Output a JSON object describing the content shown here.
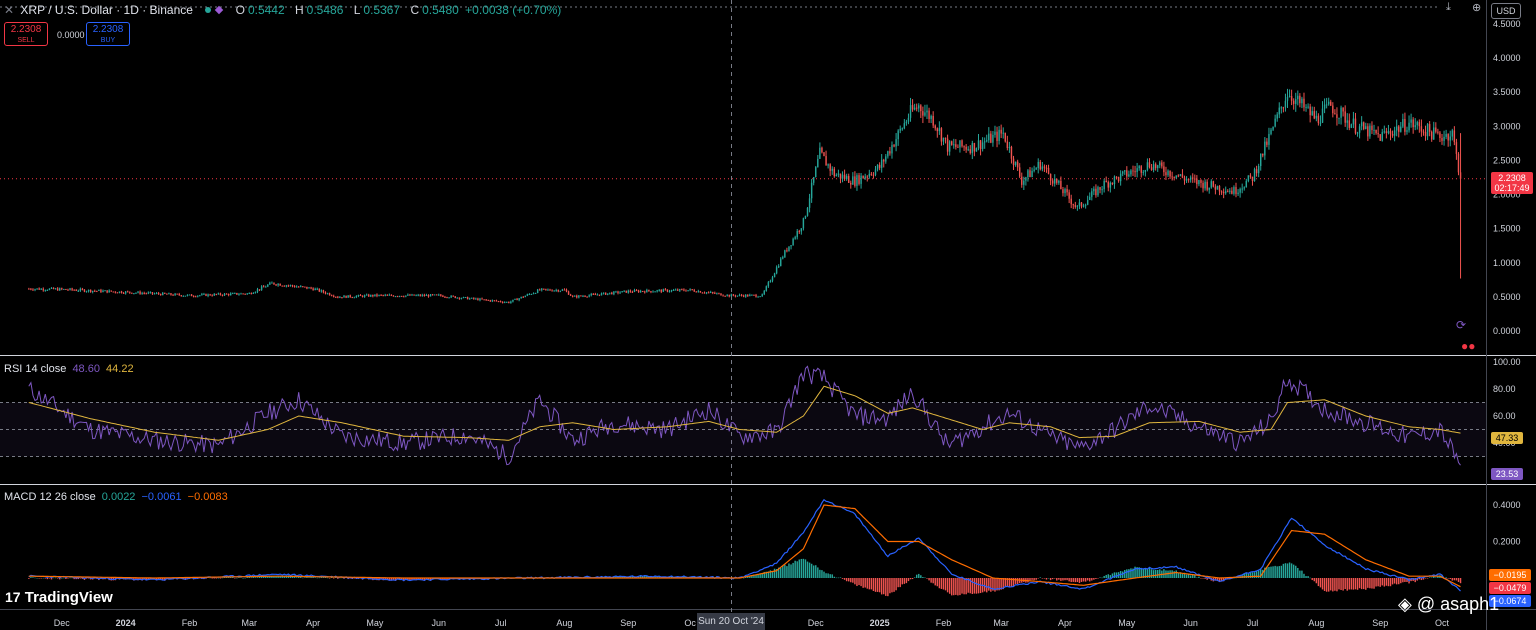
{
  "header": {
    "symbol_title": "XRP / U.S. Dollar · 1D · Binance",
    "ohlc": [
      {
        "label": "O",
        "value": "0.5442"
      },
      {
        "label": "H",
        "value": "0.5486"
      },
      {
        "label": "L",
        "value": "0.5367"
      },
      {
        "label": "C",
        "value": "0.5480"
      }
    ],
    "change": "+0.0038 (+0.70%)",
    "currency": "USD"
  },
  "trade": {
    "sell_price": "2.2308",
    "sell_label": "SELL",
    "spread": "0.0000",
    "buy_price": "2.2308",
    "buy_label": "BUY"
  },
  "rsi_legend": {
    "name": "RSI 14 close",
    "v1": "48.60",
    "v2": "44.22"
  },
  "macd_legend": {
    "name": "MACD 12 26 close",
    "v1": "0.0022",
    "v2": "−0.0061",
    "v3": "−0.0083"
  },
  "price_tags": {
    "last_price": "2.2308",
    "countdown": "02:17:49",
    "rsi_ma": "47.33",
    "rsi_value": "23.53",
    "macd_hist": "−0.0195",
    "macd_signal": "−0.0479",
    "macd_line": "−0.0674"
  },
  "crosshair_date": "Sun 20 Oct '24",
  "branding": {
    "logo": "TradingView",
    "watermark": "@ asaph1"
  },
  "colors": {
    "up": "#26a69a",
    "down": "#ef5350",
    "rsi": "#7e57c2",
    "rsi_ma": "#e0b63e",
    "macd": "#2962ff",
    "signal": "#ff6d00"
  },
  "chart_data": {
    "type": "candlestick",
    "time_axis": {
      "labels": [
        "Dec",
        "2024",
        "Feb",
        "Mar",
        "Apr",
        "May",
        "Jun",
        "Jul",
        "Aug",
        "Sep",
        "Oc",
        "Dec",
        "2025",
        "Feb",
        "Mar",
        "Apr",
        "May",
        "Jun",
        "Jul",
        "Aug",
        "Sep",
        "Oct"
      ],
      "dates": [
        "2023-12-01",
        "2024-01-01",
        "2024-02-01",
        "2024-03-01",
        "2024-04-01",
        "2024-05-01",
        "2024-06-01",
        "2024-07-01",
        "2024-08-01",
        "2024-09-01",
        "2024-10-01",
        "2024-12-01",
        "2025-01-01",
        "2025-02-01",
        "2025-03-01",
        "2025-04-01",
        "2025-05-01",
        "2025-06-01",
        "2025-07-01",
        "2025-08-01",
        "2025-09-01",
        "2025-10-01"
      ]
    },
    "price_axis": {
      "ticks": [
        0.0,
        0.5,
        1.0,
        1.5,
        2.0,
        2.5,
        3.0,
        3.5,
        4.0,
        4.5
      ],
      "range": [
        -0.05,
        4.6
      ],
      "current": 2.2308
    },
    "price_series": {
      "dates": [
        "2023-11-15",
        "2023-12-01",
        "2024-01-01",
        "2024-02-01",
        "2024-03-01",
        "2024-03-12",
        "2024-04-01",
        "2024-04-13",
        "2024-05-01",
        "2024-06-01",
        "2024-07-05",
        "2024-07-20",
        "2024-08-01",
        "2024-08-05",
        "2024-09-01",
        "2024-10-01",
        "2024-10-20",
        "2024-11-05",
        "2024-11-15",
        "2024-11-25",
        "2024-12-03",
        "2024-12-10",
        "2024-12-20",
        "2025-01-01",
        "2025-01-16",
        "2025-01-20",
        "2025-01-27",
        "2025-02-03",
        "2025-02-15",
        "2025-03-02",
        "2025-03-11",
        "2025-03-20",
        "2025-04-07",
        "2025-04-20",
        "2025-05-12",
        "2025-06-01",
        "2025-06-22",
        "2025-07-01",
        "2025-07-10",
        "2025-07-18",
        "2025-08-01",
        "2025-08-08",
        "2025-08-20",
        "2025-09-01",
        "2025-09-15",
        "2025-09-30",
        "2025-10-06",
        "2025-10-10"
      ],
      "close": [
        0.62,
        0.61,
        0.57,
        0.52,
        0.55,
        0.7,
        0.62,
        0.5,
        0.52,
        0.52,
        0.42,
        0.6,
        0.6,
        0.5,
        0.58,
        0.6,
        0.52,
        0.52,
        1.1,
        1.6,
        2.6,
        2.3,
        2.2,
        2.4,
        3.2,
        3.3,
        3.1,
        2.7,
        2.7,
        2.9,
        2.2,
        2.45,
        1.8,
        2.15,
        2.45,
        2.2,
        2.05,
        2.25,
        2.9,
        3.5,
        3.1,
        3.3,
        3.0,
        2.85,
        3.05,
        2.85,
        2.9,
        2.23
      ],
      "high": [
        0.66,
        0.64,
        0.62,
        0.56,
        0.6,
        0.74,
        0.64,
        0.55,
        0.55,
        0.54,
        0.47,
        0.64,
        0.63,
        0.56,
        0.62,
        0.64,
        0.55,
        0.55,
        1.25,
        1.75,
        2.9,
        2.7,
        2.5,
        2.55,
        3.4,
        3.35,
        3.2,
        3.0,
        2.8,
        3.0,
        2.7,
        2.6,
        2.3,
        2.3,
        2.65,
        2.35,
        2.2,
        2.35,
        3.1,
        3.66,
        3.4,
        3.38,
        3.15,
        3.0,
        3.18,
        3.0,
        3.05,
        2.9
      ],
      "low": [
        0.59,
        0.58,
        0.54,
        0.5,
        0.52,
        0.63,
        0.48,
        0.47,
        0.5,
        0.49,
        0.38,
        0.55,
        0.56,
        0.43,
        0.55,
        0.57,
        0.5,
        0.49,
        0.95,
        1.4,
        2.2,
        2.0,
        1.9,
        2.2,
        2.8,
        2.95,
        2.8,
        1.77,
        2.4,
        2.4,
        1.9,
        2.05,
        1.61,
        2.0,
        2.3,
        1.98,
        1.91,
        2.15,
        2.7,
        3.2,
        2.72,
        2.95,
        2.85,
        2.7,
        2.9,
        2.7,
        2.75,
        0.77
      ]
    },
    "rsi": {
      "name": "RSI 14 close",
      "value": 48.6,
      "ma_value": 44.22,
      "axis_ticks": [
        40.0,
        60.0,
        80.0,
        100.0
      ],
      "band": [
        30,
        70
      ],
      "midline": 50,
      "dates": [
        "2023-11-15",
        "2023-12-15",
        "2024-01-15",
        "2024-02-15",
        "2024-03-10",
        "2024-03-25",
        "2024-04-15",
        "2024-05-15",
        "2024-06-15",
        "2024-07-05",
        "2024-07-20",
        "2024-08-05",
        "2024-08-25",
        "2024-09-20",
        "2024-10-10",
        "2024-10-25",
        "2024-11-12",
        "2024-11-25",
        "2024-12-05",
        "2024-12-20",
        "2025-01-05",
        "2025-01-17",
        "2025-02-03",
        "2025-02-20",
        "2025-03-05",
        "2025-03-25",
        "2025-04-08",
        "2025-04-25",
        "2025-05-12",
        "2025-06-05",
        "2025-06-25",
        "2025-07-10",
        "2025-07-18",
        "2025-08-05",
        "2025-08-25",
        "2025-09-15",
        "2025-09-30",
        "2025-10-10"
      ],
      "values": [
        80,
        50,
        42,
        38,
        62,
        72,
        45,
        40,
        46,
        30,
        72,
        42,
        55,
        50,
        65,
        45,
        48,
        92,
        88,
        60,
        58,
        78,
        38,
        52,
        62,
        45,
        36,
        50,
        68,
        52,
        40,
        56,
        88,
        65,
        55,
        44,
        50,
        23.53
      ],
      "ma": [
        70,
        58,
        48,
        42,
        50,
        60,
        55,
        45,
        44,
        42,
        52,
        55,
        50,
        52,
        56,
        50,
        48,
        60,
        82,
        75,
        62,
        66,
        58,
        50,
        55,
        52,
        44,
        45,
        55,
        56,
        48,
        50,
        70,
        72,
        60,
        52,
        50,
        47.33
      ]
    },
    "macd": {
      "name": "MACD 12 26 close",
      "histogram_value": 0.0022,
      "macd_value": -0.0061,
      "signal_value": -0.0083,
      "axis_ticks": [
        0.2,
        0.4
      ],
      "dates": [
        "2023-11-15",
        "2024-01-15",
        "2024-03-15",
        "2024-05-15",
        "2024-07-15",
        "2024-09-15",
        "2024-10-25",
        "2024-11-12",
        "2024-11-25",
        "2024-12-05",
        "2024-12-20",
        "2025-01-05",
        "2025-01-20",
        "2025-02-05",
        "2025-02-25",
        "2025-03-20",
        "2025-04-10",
        "2025-05-05",
        "2025-05-25",
        "2025-06-15",
        "2025-07-05",
        "2025-07-20",
        "2025-08-05",
        "2025-08-25",
        "2025-09-15",
        "2025-09-30",
        "2025-10-10"
      ],
      "macd_line": [
        0.01,
        -0.01,
        0.02,
        -0.01,
        0.0,
        0.01,
        0.0,
        0.08,
        0.25,
        0.43,
        0.35,
        0.12,
        0.22,
        0.02,
        -0.06,
        -0.02,
        -0.06,
        0.05,
        0.06,
        -0.02,
        0.05,
        0.33,
        0.18,
        0.05,
        -0.01,
        0.02,
        -0.0674
      ],
      "signal_line": [
        0.01,
        0.0,
        0.01,
        0.0,
        0.0,
        0.0,
        0.0,
        0.04,
        0.16,
        0.4,
        0.38,
        0.2,
        0.2,
        0.1,
        0.0,
        -0.02,
        -0.04,
        0.0,
        0.03,
        0.0,
        0.01,
        0.26,
        0.24,
        0.1,
        0.01,
        0.01,
        -0.0479
      ]
    }
  }
}
